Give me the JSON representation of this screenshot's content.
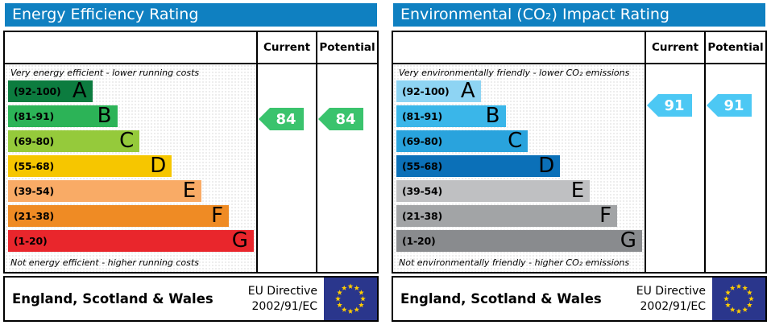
{
  "colors": {
    "titlebar": "#0f80c1",
    "flag_blue": "#2a368c",
    "flag_star": "#ffcc00",
    "border": "#000000"
  },
  "chart_data": [
    {
      "type": "bar",
      "title": "Energy Efficiency Rating",
      "caption_top": "Very energy efficient - lower running costs",
      "caption_bottom": "Not energy efficient - higher running costs",
      "columns": {
        "current": "Current",
        "potential": "Potential"
      },
      "categories": [
        "A",
        "B",
        "C",
        "D",
        "E",
        "F",
        "G"
      ],
      "bands": [
        {
          "letter": "A",
          "range": "(92-100)",
          "lo": 92,
          "hi": 100,
          "color": "#0c7c3f",
          "width_pct": 34
        },
        {
          "letter": "B",
          "range": "(81-91)",
          "lo": 81,
          "hi": 91,
          "color": "#2cb357",
          "width_pct": 44
        },
        {
          "letter": "C",
          "range": "(69-80)",
          "lo": 69,
          "hi": 80,
          "color": "#95ca3b",
          "width_pct": 53
        },
        {
          "letter": "D",
          "range": "(55-68)",
          "lo": 55,
          "hi": 68,
          "color": "#f6c600",
          "width_pct": 66
        },
        {
          "letter": "E",
          "range": "(39-54)",
          "lo": 39,
          "hi": 54,
          "color": "#f9ab66",
          "width_pct": 78
        },
        {
          "letter": "F",
          "range": "(21-38)",
          "lo": 21,
          "hi": 38,
          "color": "#ef8b24",
          "width_pct": 89
        },
        {
          "letter": "G",
          "range": "(1-20)",
          "lo": 1,
          "hi": 20,
          "color": "#e9262c",
          "width_pct": 99
        }
      ],
      "current": {
        "value": 84,
        "label": "84",
        "color": "#3ac36d"
      },
      "potential": {
        "value": 84,
        "label": "84",
        "color": "#3ac36d"
      },
      "footer": {
        "region": "England, Scotland & Wales",
        "directive": [
          "EU Directive",
          "2002/91/EC"
        ]
      }
    },
    {
      "type": "bar",
      "title": "Environmental (CO₂) Impact Rating",
      "caption_top": "Very environmentally friendly - lower CO₂ emissions",
      "caption_bottom": "Not environmentally friendly - higher CO₂ emissions",
      "columns": {
        "current": "Current",
        "potential": "Potential"
      },
      "categories": [
        "A",
        "B",
        "C",
        "D",
        "E",
        "F",
        "G"
      ],
      "bands": [
        {
          "letter": "A",
          "range": "(92-100)",
          "lo": 92,
          "hi": 100,
          "color": "#8ed4f3",
          "width_pct": 34
        },
        {
          "letter": "B",
          "range": "(81-91)",
          "lo": 81,
          "hi": 91,
          "color": "#3ab6e9",
          "width_pct": 44
        },
        {
          "letter": "C",
          "range": "(69-80)",
          "lo": 69,
          "hi": 80,
          "color": "#29a3dd",
          "width_pct": 53
        },
        {
          "letter": "D",
          "range": "(55-68)",
          "lo": 55,
          "hi": 68,
          "color": "#0b70b8",
          "width_pct": 66
        },
        {
          "letter": "E",
          "range": "(39-54)",
          "lo": 39,
          "hi": 54,
          "color": "#bfc0c2",
          "width_pct": 78
        },
        {
          "letter": "F",
          "range": "(21-38)",
          "lo": 21,
          "hi": 38,
          "color": "#a2a4a6",
          "width_pct": 89
        },
        {
          "letter": "G",
          "range": "(1-20)",
          "lo": 1,
          "hi": 20,
          "color": "#898b8e",
          "width_pct": 99
        }
      ],
      "current": {
        "value": 91,
        "label": "91",
        "color": "#4cc8f4"
      },
      "potential": {
        "value": 91,
        "label": "91",
        "color": "#4cc8f4"
      },
      "footer": {
        "region": "England, Scotland & Wales",
        "directive": [
          "EU Directive",
          "2002/91/EC"
        ]
      }
    }
  ]
}
